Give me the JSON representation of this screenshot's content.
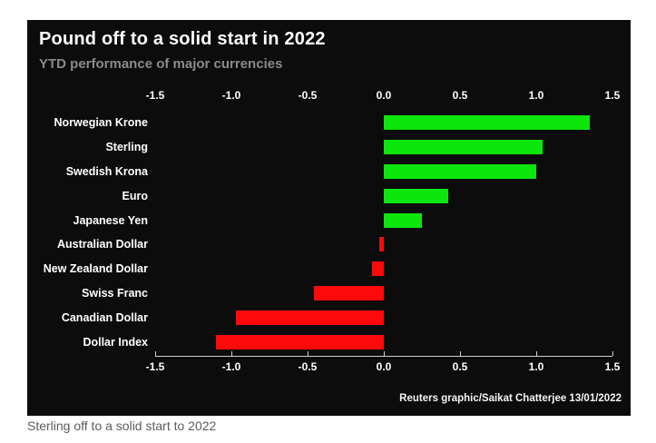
{
  "header": {
    "title": "Pound off to a solid start in 2022",
    "subtitle": "YTD performance of major currencies"
  },
  "credit": "Reuters graphic/Saikat Chatterjee 13/01/2022",
  "caption": "Sterling off to a solid start to 2022",
  "colors": {
    "panel_background": "#0c0c0c",
    "positive": "#0ce60c",
    "negative": "#fa0a0a",
    "axis": "#cfcfcf",
    "title_text": "#ffffff",
    "subtitle_text": "#8a8a8a",
    "caption_text": "#5c5c5c"
  },
  "chart_data": {
    "type": "bar",
    "orientation": "horizontal",
    "title": "Pound off to a solid start in 2022",
    "subtitle": "YTD performance of major currencies",
    "categories": [
      "Norwegian Krone",
      "Sterling",
      "Swedish Krona",
      "Euro",
      "Japanese Yen",
      "Australian Dollar",
      "New Zealand Dollar",
      "Swiss Franc",
      "Canadian Dollar",
      "Dollar Index"
    ],
    "values": [
      1.35,
      1.04,
      1.0,
      0.42,
      0.25,
      -0.03,
      -0.08,
      -0.46,
      -0.97,
      -1.1
    ],
    "x_ticks": [
      "-1.5",
      "-1.0",
      "-0.5",
      "0.0",
      "0.5",
      "1.0",
      "1.5"
    ],
    "xlim": [
      -1.5,
      1.5
    ],
    "xlabel": "",
    "ylabel": "",
    "grid": false,
    "legend": false,
    "axis_positions": [
      "top",
      "bottom"
    ],
    "positive_color": "#0ce60c",
    "negative_color": "#fa0a0a"
  }
}
